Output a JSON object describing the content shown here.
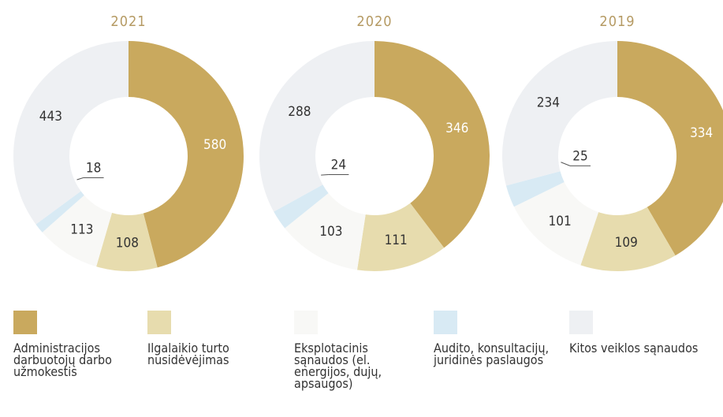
{
  "chart_data": [
    {
      "type": "pie",
      "title": "2021",
      "categories": [
        "Administracijos darbuotojų darbo užmokestis",
        "Ilgalaikio turto nusidėvėjimas",
        "Eksplotacinis sąnaudos (el. energijos, dujų, apsaugos)",
        "Audito, konsultacijų, juridinės paslaugos",
        "Kitos veiklos sąnaudos"
      ],
      "values": [
        580,
        108,
        113,
        18,
        443
      ],
      "colors": [
        "#c9a95e",
        "#e7dcae",
        "#f8f8f6",
        "#d8eaf4",
        "#eef0f3"
      ]
    },
    {
      "type": "pie",
      "title": "2020",
      "categories": [
        "Administracijos darbuotojų darbo užmokestis",
        "Ilgalaikio turto nusidėvėjimas",
        "Eksplotacinis sąnaudos (el. energijos, dujų, apsaugos)",
        "Audito, konsultacijų, juridinės paslaugos",
        "Kitos veiklos sąnaudos"
      ],
      "values": [
        346,
        111,
        103,
        24,
        288
      ],
      "colors": [
        "#c9a95e",
        "#e7dcae",
        "#f8f8f6",
        "#d8eaf4",
        "#eef0f3"
      ]
    },
    {
      "type": "pie",
      "title": "2019",
      "categories": [
        "Administracijos darbuotojų darbo užmokestis",
        "Ilgalaikio turto nusidėvėjimas",
        "Eksplotacinis sąnaudos (el. energijos, dujų, apsaugos)",
        "Audito, konsultacijų, juridinės paslaugos",
        "Kitos veiklos sąnaudos"
      ],
      "values": [
        334,
        109,
        101,
        25,
        234
      ],
      "colors": [
        "#c9a95e",
        "#e7dcae",
        "#f8f8f6",
        "#d8eaf4",
        "#eef0f3"
      ]
    }
  ]
}
